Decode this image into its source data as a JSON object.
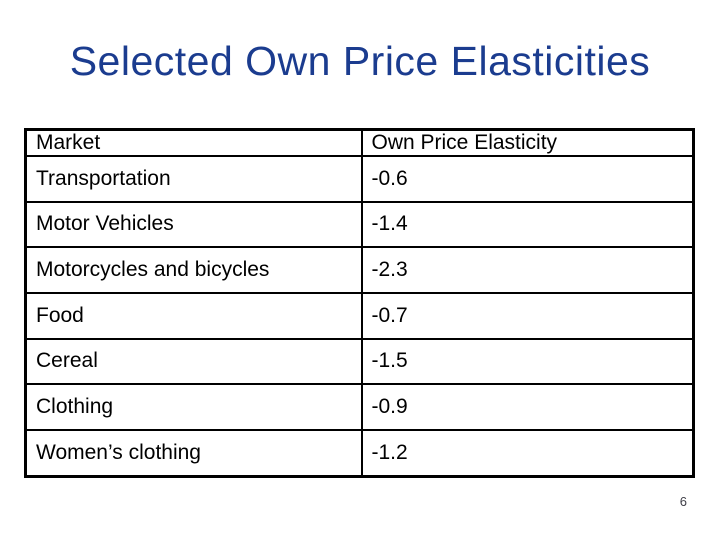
{
  "slide": {
    "title": "Selected Own Price Elasticities",
    "page_number": "6",
    "title_color": "#1b3c8f",
    "border_color": "#000000",
    "background_color": "#ffffff"
  },
  "table": {
    "headers": [
      "Market",
      "Own Price Elasticity"
    ],
    "rows": [
      [
        "Transportation",
        "-0.6"
      ],
      [
        "Motor Vehicles",
        "-1.4"
      ],
      [
        "Motorcycles and bicycles",
        "-2.3"
      ],
      [
        "Food",
        "-0.7"
      ],
      [
        "Cereal",
        "-1.5"
      ],
      [
        "Clothing",
        "-0.9"
      ],
      [
        "Women’s clothing",
        "-1.2"
      ]
    ]
  }
}
